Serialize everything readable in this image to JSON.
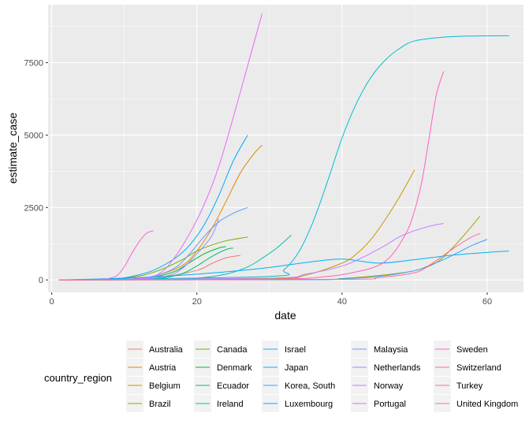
{
  "chart_data": {
    "type": "line",
    "xlabel": "date",
    "ylabel": "estimate_case",
    "xlim": [
      -0.5,
      65
    ],
    "ylim": [
      -430,
      9500
    ],
    "x_ticks": [
      0,
      20,
      40,
      60
    ],
    "x_tick_labels": [
      "0",
      "20",
      "40",
      "60"
    ],
    "y_ticks": [
      0,
      2500,
      5000,
      7500
    ],
    "y_tick_labels": [
      "0",
      "2500",
      "5000",
      "7500"
    ],
    "grid": true,
    "legend": {
      "title": "country_region",
      "position": "bottom",
      "ncol": 5
    },
    "series": [
      {
        "name": "Australia",
        "color": "#F8766D",
        "points": [
          [
            1,
            0
          ],
          [
            10,
            20
          ],
          [
            15,
            90
          ],
          [
            20,
            330
          ],
          [
            22,
            560
          ],
          [
            24,
            760
          ],
          [
            26,
            850
          ]
        ]
      },
      {
        "name": "Austria",
        "color": "#E58700",
        "points": [
          [
            1,
            0
          ],
          [
            10,
            20
          ],
          [
            14,
            120
          ],
          [
            18,
            500
          ],
          [
            20,
            1000
          ],
          [
            22,
            1750
          ],
          [
            24,
            2700
          ],
          [
            26,
            3700
          ],
          [
            28,
            4400
          ],
          [
            29,
            4650
          ]
        ]
      },
      {
        "name": "Belgium",
        "color": "#C99800",
        "points": [
          [
            1,
            0
          ],
          [
            30,
            40
          ],
          [
            35,
            170
          ],
          [
            40,
            580
          ],
          [
            42,
            900
          ],
          [
            44,
            1400
          ],
          [
            46,
            2100
          ],
          [
            48,
            2900
          ],
          [
            50,
            3800
          ]
        ]
      },
      {
        "name": "Brazil",
        "color": "#A3A500",
        "points": [
          [
            1,
            0
          ],
          [
            35,
            15
          ],
          [
            40,
            50
          ],
          [
            45,
            150
          ],
          [
            50,
            320
          ],
          [
            53,
            600
          ],
          [
            55,
            1050
          ],
          [
            57,
            1600
          ],
          [
            59,
            2200
          ]
        ]
      },
      {
        "name": "Canada",
        "color": "#6BB100",
        "points": [
          [
            1,
            0
          ],
          [
            8,
            30
          ],
          [
            12,
            130
          ],
          [
            15,
            350
          ],
          [
            18,
            700
          ],
          [
            20,
            1000
          ],
          [
            22,
            1200
          ],
          [
            24,
            1350
          ],
          [
            26,
            1440
          ],
          [
            27,
            1480
          ]
        ]
      },
      {
        "name": "Denmark",
        "color": "#00BA38",
        "points": [
          [
            1,
            0
          ],
          [
            10,
            20
          ],
          [
            14,
            100
          ],
          [
            17,
            300
          ],
          [
            19,
            600
          ],
          [
            21,
            900
          ],
          [
            23,
            1100
          ],
          [
            24,
            1150
          ]
        ]
      },
      {
        "name": "Ecuador",
        "color": "#00BF7D",
        "points": [
          [
            1,
            0
          ],
          [
            10,
            10
          ],
          [
            15,
            60
          ],
          [
            18,
            220
          ],
          [
            20,
            480
          ],
          [
            22,
            800
          ],
          [
            24,
            1050
          ],
          [
            25,
            1100
          ]
        ]
      },
      {
        "name": "Ireland",
        "color": "#00C0AF",
        "points": [
          [
            1,
            0
          ],
          [
            15,
            10
          ],
          [
            20,
            60
          ],
          [
            24,
            200
          ],
          [
            27,
            450
          ],
          [
            29,
            750
          ],
          [
            31,
            1100
          ],
          [
            33,
            1550
          ]
        ]
      },
      {
        "name": "Israel",
        "color": "#00BCD8",
        "points": [
          [
            1,
            0
          ],
          [
            30,
            120
          ],
          [
            32,
            350
          ],
          [
            34,
            950
          ],
          [
            36,
            2000
          ],
          [
            38,
            3400
          ],
          [
            40,
            4900
          ],
          [
            42,
            6100
          ],
          [
            44,
            7000
          ],
          [
            46,
            7600
          ],
          [
            48,
            8000
          ],
          [
            50,
            8250
          ],
          [
            54,
            8380
          ],
          [
            58,
            8420
          ],
          [
            63,
            8430
          ]
        ]
      },
      {
        "name": "Japan",
        "color": "#00B0F6",
        "points": [
          [
            1,
            0
          ],
          [
            10,
            60
          ],
          [
            15,
            120
          ],
          [
            20,
            200
          ],
          [
            25,
            300
          ],
          [
            30,
            430
          ],
          [
            35,
            600
          ],
          [
            40,
            720
          ],
          [
            45,
            580
          ],
          [
            50,
            700
          ],
          [
            55,
            850
          ],
          [
            60,
            950
          ],
          [
            63,
            1000
          ]
        ]
      },
      {
        "name": "Korea, South",
        "color": "#35A2FF",
        "points": [
          [
            1,
            0
          ],
          [
            35,
            10
          ],
          [
            40,
            40
          ],
          [
            45,
            120
          ],
          [
            50,
            320
          ],
          [
            52,
            500
          ],
          [
            54,
            700
          ],
          [
            56,
            950
          ],
          [
            58,
            1200
          ],
          [
            60,
            1400
          ]
        ]
      },
      {
        "name": "Luxembourg",
        "color": "#00A9FF",
        "points": [
          [
            1,
            0
          ],
          [
            8,
            30
          ],
          [
            11,
            120
          ],
          [
            14,
            330
          ],
          [
            17,
            750
          ],
          [
            19,
            1200
          ],
          [
            21,
            1900
          ],
          [
            23,
            2900
          ],
          [
            25,
            4100
          ],
          [
            27,
            5000
          ]
        ]
      },
      {
        "name": "Malaysia",
        "color": "#619CFF",
        "points": [
          [
            1,
            0
          ],
          [
            10,
            20
          ],
          [
            14,
            130
          ],
          [
            17,
            420
          ],
          [
            19,
            900
          ],
          [
            21,
            1500
          ],
          [
            23,
            2000
          ],
          [
            25,
            2300
          ],
          [
            27,
            2500
          ]
        ]
      },
      {
        "name": "Netherlands",
        "color": "#9590FF",
        "points": [
          [
            1,
            0
          ],
          [
            12,
            30
          ],
          [
            16,
            150
          ],
          [
            18,
            400
          ],
          [
            20,
            900
          ],
          [
            22,
            1500
          ],
          [
            23,
            2100
          ]
        ]
      },
      {
        "name": "Norway",
        "color": "#C77CFF",
        "points": [
          [
            1,
            0
          ],
          [
            30,
            60
          ],
          [
            35,
            200
          ],
          [
            40,
            480
          ],
          [
            43,
            800
          ],
          [
            46,
            1200
          ],
          [
            48,
            1500
          ],
          [
            50,
            1700
          ],
          [
            52,
            1850
          ],
          [
            54,
            1950
          ]
        ]
      },
      {
        "name": "Portugal",
        "color": "#E76BF3",
        "points": [
          [
            1,
            0
          ],
          [
            12,
            40
          ],
          [
            15,
            250
          ],
          [
            17,
            800
          ],
          [
            19,
            1600
          ],
          [
            21,
            2600
          ],
          [
            23,
            3900
          ],
          [
            25,
            5600
          ],
          [
            27,
            7400
          ],
          [
            29,
            9200
          ]
        ]
      },
      {
        "name": "Sweden",
        "color": "#FA62DB",
        "points": [
          [
            1,
            0
          ],
          [
            7,
            20
          ],
          [
            8,
            60
          ],
          [
            9,
            150
          ],
          [
            10,
            450
          ],
          [
            11,
            900
          ],
          [
            12,
            1300
          ],
          [
            13,
            1600
          ],
          [
            14,
            1700
          ]
        ]
      },
      {
        "name": "Switzerland",
        "color": "#FF62BC",
        "points": [
          [
            1,
            0
          ],
          [
            30,
            20
          ],
          [
            38,
            120
          ],
          [
            42,
            280
          ],
          [
            45,
            500
          ],
          [
            47,
            900
          ],
          [
            49,
            1700
          ],
          [
            50,
            2400
          ],
          [
            51,
            3400
          ],
          [
            52,
            4900
          ],
          [
            53,
            6400
          ],
          [
            54,
            7200
          ]
        ]
      },
      {
        "name": "Turkey",
        "color": "#FF6C91",
        "points": [
          [
            1,
            0
          ],
          [
            40,
            20
          ],
          [
            45,
            80
          ],
          [
            50,
            250
          ],
          [
            52,
            500
          ],
          [
            54,
            850
          ],
          [
            56,
            1200
          ],
          [
            58,
            1500
          ],
          [
            59,
            1600
          ]
        ]
      },
      {
        "name": "United Kingdom",
        "color": "#FF6C91",
        "points": []
      }
    ]
  }
}
